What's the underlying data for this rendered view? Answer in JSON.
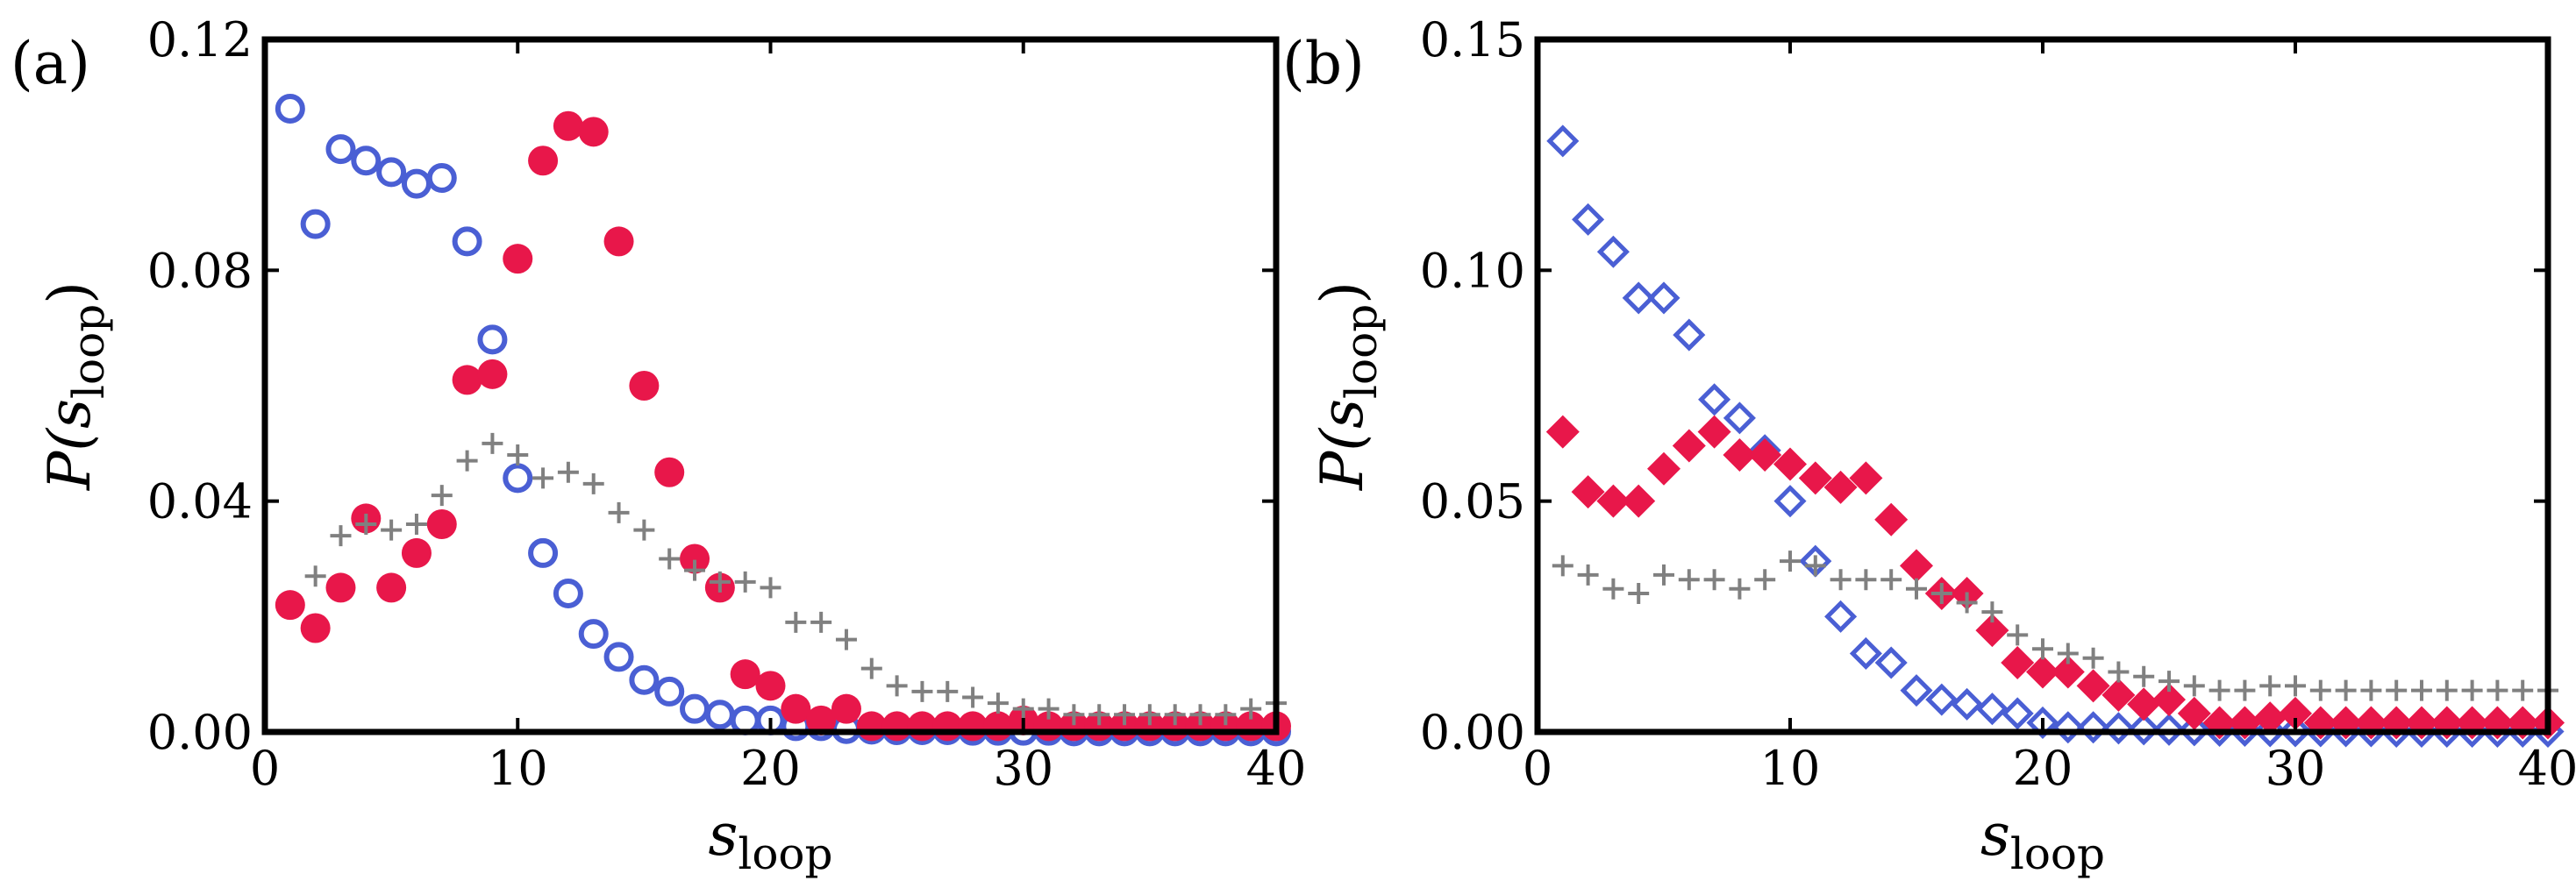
{
  "colors": {
    "blue": "#4a5fd4",
    "red": "#e8174a",
    "gray": "#808080",
    "axis": "#000000"
  },
  "chart_data": [
    {
      "type": "scatter",
      "panel_label": "(a)",
      "xlabel": "s",
      "xlabel_sub": "loop",
      "ylabel": "P(s",
      "ylabel_sub": "loop",
      "ylabel_close": ")",
      "xlim": [
        0,
        40
      ],
      "ylim": [
        0,
        0.12
      ],
      "xticks": [
        0,
        10,
        20,
        30,
        40
      ],
      "yticks": [
        0.0,
        0.04,
        0.08,
        0.12
      ],
      "xtick_labels": [
        "0",
        "10",
        "20",
        "30",
        "40"
      ],
      "ytick_labels": [
        "0.00",
        "0.04",
        "0.08",
        "0.12"
      ],
      "series": [
        {
          "name": "blue-open-circles",
          "marker": "open-circle",
          "color": "blue",
          "x": [
            1,
            2,
            3,
            4,
            5,
            6,
            7,
            8,
            9,
            10,
            11,
            12,
            13,
            14,
            15,
            16,
            17,
            18,
            19,
            20,
            21,
            22,
            23,
            24,
            25,
            26,
            27,
            28,
            29,
            30,
            31,
            32,
            33,
            34,
            35,
            36,
            37,
            38,
            39,
            40
          ],
          "y": [
            0.108,
            0.088,
            0.101,
            0.099,
            0.097,
            0.095,
            0.096,
            0.085,
            0.068,
            0.044,
            0.031,
            0.024,
            0.017,
            0.013,
            0.009,
            0.007,
            0.004,
            0.003,
            0.002,
            0.002,
            0.001,
            0.001,
            0.0005,
            0.0004,
            0.0003,
            0.0003,
            0.0003,
            0.0002,
            0.0002,
            0.0002,
            0.0002,
            0.0001,
            0.0001,
            0.0001,
            0.0001,
            0.0001,
            0.0001,
            0.0001,
            0.0001,
            0.0001
          ]
        },
        {
          "name": "red-filled-circles",
          "marker": "filled-circle",
          "color": "red",
          "x": [
            1,
            2,
            3,
            4,
            5,
            6,
            7,
            8,
            9,
            10,
            11,
            12,
            13,
            14,
            15,
            16,
            17,
            18,
            19,
            20,
            21,
            22,
            23,
            24,
            25,
            26,
            27,
            28,
            29,
            30,
            31,
            32,
            33,
            34,
            35,
            36,
            37,
            38,
            39,
            40
          ],
          "y": [
            0.022,
            0.018,
            0.025,
            0.037,
            0.025,
            0.031,
            0.036,
            0.061,
            0.062,
            0.082,
            0.099,
            0.105,
            0.104,
            0.085,
            0.06,
            0.045,
            0.03,
            0.025,
            0.01,
            0.008,
            0.004,
            0.002,
            0.004,
            0.001,
            0.001,
            0.001,
            0.001,
            0.001,
            0.001,
            0.002,
            0.001,
            0.001,
            0.001,
            0.001,
            0.001,
            0.001,
            0.001,
            0.001,
            0.001,
            0.001
          ]
        },
        {
          "name": "gray-plus",
          "marker": "plus",
          "color": "gray",
          "x": [
            2,
            3,
            4,
            5,
            6,
            7,
            8,
            9,
            10,
            11,
            12,
            13,
            14,
            15,
            16,
            17,
            18,
            19,
            20,
            21,
            22,
            23,
            24,
            25,
            26,
            27,
            28,
            29,
            30,
            31,
            32,
            33,
            34,
            35,
            36,
            37,
            38,
            39,
            40
          ],
          "y": [
            0.027,
            0.034,
            0.036,
            0.035,
            0.036,
            0.041,
            0.047,
            0.05,
            0.048,
            0.044,
            0.045,
            0.043,
            0.038,
            0.035,
            0.03,
            0.028,
            0.026,
            0.026,
            0.025,
            0.019,
            0.019,
            0.016,
            0.011,
            0.008,
            0.007,
            0.007,
            0.006,
            0.005,
            0.004,
            0.004,
            0.003,
            0.003,
            0.003,
            0.003,
            0.003,
            0.003,
            0.003,
            0.004,
            0.005
          ]
        }
      ]
    },
    {
      "type": "scatter",
      "panel_label": "(b)",
      "xlabel": "s",
      "xlabel_sub": "loop",
      "ylabel": "P(s",
      "ylabel_sub": "loop",
      "ylabel_close": ")",
      "xlim": [
        0,
        40
      ],
      "ylim": [
        0,
        0.15
      ],
      "xticks": [
        0,
        10,
        20,
        30,
        40
      ],
      "yticks": [
        0.0,
        0.05,
        0.1,
        0.15
      ],
      "xtick_labels": [
        "0",
        "10",
        "20",
        "30",
        "40"
      ],
      "ytick_labels": [
        "0.00",
        "0.05",
        "0.10",
        "0.15"
      ],
      "series": [
        {
          "name": "blue-open-diamonds",
          "marker": "open-diamond",
          "color": "blue",
          "x": [
            1,
            2,
            3,
            4,
            5,
            6,
            7,
            8,
            9,
            10,
            11,
            12,
            13,
            14,
            15,
            16,
            17,
            18,
            19,
            20,
            21,
            22,
            23,
            24,
            25,
            26,
            27,
            28,
            29,
            30,
            31,
            32,
            33,
            34,
            35,
            36,
            37,
            38,
            39,
            40
          ],
          "y": [
            0.128,
            0.111,
            0.104,
            0.094,
            0.094,
            0.086,
            0.072,
            0.068,
            0.061,
            0.05,
            0.037,
            0.025,
            0.017,
            0.015,
            0.009,
            0.007,
            0.006,
            0.005,
            0.004,
            0.002,
            0.001,
            0.001,
            0.0008,
            0.0006,
            0.0005,
            0.0004,
            0.0003,
            0.0003,
            0.0002,
            0.0002,
            0.0002,
            0.0002,
            0.0002,
            0.0001,
            0.0001,
            0.0001,
            0.0001,
            0.0001,
            0.0001,
            0.0001
          ]
        },
        {
          "name": "red-filled-diamonds",
          "marker": "filled-diamond",
          "color": "red",
          "x": [
            1,
            2,
            3,
            4,
            5,
            6,
            7,
            8,
            9,
            10,
            11,
            12,
            13,
            14,
            15,
            16,
            17,
            18,
            19,
            20,
            21,
            22,
            23,
            24,
            25,
            26,
            27,
            28,
            29,
            30,
            31,
            32,
            33,
            34,
            35,
            36,
            37,
            38,
            39,
            40
          ],
          "y": [
            0.065,
            0.052,
            0.05,
            0.05,
            0.057,
            0.062,
            0.065,
            0.06,
            0.06,
            0.058,
            0.055,
            0.053,
            0.055,
            0.046,
            0.036,
            0.03,
            0.03,
            0.022,
            0.015,
            0.013,
            0.013,
            0.01,
            0.008,
            0.006,
            0.007,
            0.004,
            0.002,
            0.002,
            0.003,
            0.004,
            0.002,
            0.002,
            0.002,
            0.002,
            0.002,
            0.002,
            0.002,
            0.002,
            0.002,
            0.002
          ]
        },
        {
          "name": "gray-plus",
          "marker": "plus",
          "color": "gray",
          "x": [
            1,
            2,
            3,
            4,
            5,
            6,
            7,
            8,
            9,
            10,
            11,
            12,
            13,
            14,
            15,
            16,
            17,
            18,
            19,
            20,
            21,
            22,
            23,
            24,
            25,
            26,
            27,
            28,
            29,
            30,
            31,
            32,
            33,
            34,
            35,
            36,
            37,
            38,
            39,
            40
          ],
          "y": [
            0.036,
            0.034,
            0.031,
            0.03,
            0.034,
            0.033,
            0.033,
            0.031,
            0.033,
            0.037,
            0.036,
            0.033,
            0.033,
            0.033,
            0.031,
            0.03,
            0.028,
            0.026,
            0.021,
            0.018,
            0.017,
            0.016,
            0.013,
            0.012,
            0.011,
            0.01,
            0.009,
            0.009,
            0.01,
            0.01,
            0.009,
            0.009,
            0.009,
            0.009,
            0.009,
            0.009,
            0.009,
            0.009,
            0.009,
            0.009
          ]
        }
      ]
    }
  ]
}
